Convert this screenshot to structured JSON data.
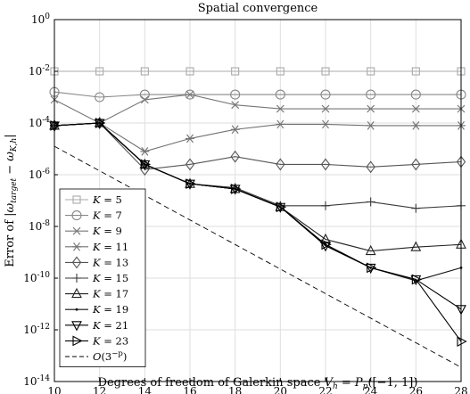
{
  "chart_data": {
    "type": "line",
    "title": "Spatial convergence",
    "xlabel": "Degrees of freedom of Galerkin space V_h = P_p([−1, 1])",
    "ylabel": "Error of |ω_target − ω_K,h|",
    "x": [
      10,
      12,
      14,
      16,
      18,
      20,
      22,
      24,
      26,
      28
    ],
    "xlim": [
      10,
      28
    ],
    "ylim_exp": [
      -14,
      0
    ],
    "yscale": "log",
    "grid": true,
    "legend_position": "lower-left",
    "x_ticks": [
      "10",
      "12",
      "14",
      "16",
      "18",
      "20",
      "22",
      "24",
      "26",
      "28"
    ],
    "y_ticks": [
      {
        "base": "10",
        "exp": "0"
      },
      {
        "base": "10",
        "exp": "-2"
      },
      {
        "base": "10",
        "exp": "-4"
      },
      {
        "base": "10",
        "exp": "-6"
      },
      {
        "base": "10",
        "exp": "-8"
      },
      {
        "base": "10",
        "exp": "-10"
      },
      {
        "base": "10",
        "exp": "-12"
      },
      {
        "base": "10",
        "exp": "-14"
      }
    ],
    "series": [
      {
        "name": "K = 5",
        "marker": "square",
        "color": "#aaaaaa",
        "log10": [
          -2.0,
          -2.0,
          -2.0,
          -2.0,
          -2.0,
          -2.0,
          -2.0,
          -2.0,
          -2.0,
          -2.0
        ]
      },
      {
        "name": "K = 7",
        "marker": "circle",
        "color": "#888888",
        "log10": [
          -2.8,
          -3.0,
          -2.9,
          -2.9,
          -2.9,
          -2.9,
          -2.9,
          -2.9,
          -2.9,
          -2.9
        ]
      },
      {
        "name": "K = 9",
        "marker": "x",
        "color": "#777777",
        "log10": [
          -3.1,
          -4.0,
          -3.1,
          -2.9,
          -3.3,
          -3.45,
          -3.45,
          -3.45,
          -3.45,
          -3.45
        ]
      },
      {
        "name": "K = 11",
        "marker": "asterisk",
        "color": "#707070",
        "log10": [
          -4.1,
          -4.0,
          -5.1,
          -4.6,
          -4.25,
          -4.05,
          -4.05,
          -4.1,
          -4.1,
          -4.1
        ]
      },
      {
        "name": "K = 13",
        "marker": "diamond",
        "color": "#555555",
        "log10": [
          -4.1,
          -4.0,
          -5.8,
          -5.6,
          -5.3,
          -5.6,
          -5.6,
          -5.7,
          -5.6,
          -5.5
        ]
      },
      {
        "name": "K = 15",
        "marker": "plus",
        "color": "#3a3a3a",
        "log10": [
          -4.1,
          -4.0,
          -5.6,
          -6.35,
          -6.5,
          -7.2,
          -7.2,
          -7.05,
          -7.3,
          -7.2
        ]
      },
      {
        "name": "K = 17",
        "marker": "triangle-up",
        "color": "#222222",
        "log10": [
          -4.1,
          -4.0,
          -5.6,
          -6.35,
          -6.55,
          -7.25,
          -8.5,
          -8.95,
          -8.8,
          -8.7
        ]
      },
      {
        "name": "K = 19",
        "marker": "dot",
        "color": "#111111",
        "log10": [
          -4.1,
          -4.0,
          -5.6,
          -6.35,
          -6.55,
          -7.25,
          -8.7,
          -9.6,
          -10.1,
          -9.6
        ]
      },
      {
        "name": "K = 21",
        "marker": "triangle-down",
        "color": "#000000",
        "log10": [
          -4.1,
          -4.0,
          -5.6,
          -6.35,
          -6.55,
          -7.25,
          -8.75,
          -9.6,
          -10.05,
          -11.2
        ]
      },
      {
        "name": "K = 23",
        "marker": "triangle-right",
        "color": "#000000",
        "log10": [
          -4.1,
          -4.0,
          -5.6,
          -6.35,
          -6.55,
          -7.25,
          -8.7,
          -9.6,
          -10.05,
          -12.45
        ]
      },
      {
        "name": "O(3^−p)",
        "marker": "none",
        "dash": true,
        "color": "#000000",
        "log10": [
          -4.9,
          -5.85,
          -6.8,
          -7.75,
          -8.7,
          -9.65,
          -10.6,
          -11.55,
          -12.5,
          -13.45
        ]
      }
    ]
  }
}
